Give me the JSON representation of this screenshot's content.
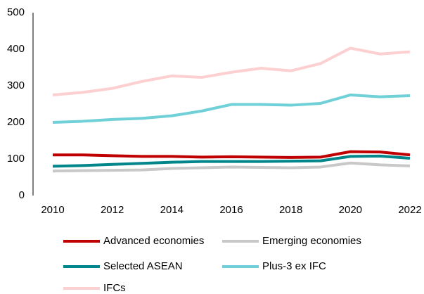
{
  "chart_data": {
    "type": "line",
    "x": [
      2010,
      2011,
      2012,
      2013,
      2014,
      2015,
      2016,
      2017,
      2018,
      2019,
      2020,
      2021,
      2022
    ],
    "xlim": [
      2010,
      2022
    ],
    "xticks": [
      2010,
      2012,
      2014,
      2016,
      2018,
      2020,
      2022
    ],
    "ylim": [
      0,
      500
    ],
    "yticks": [
      0,
      100,
      200,
      300,
      400,
      500
    ],
    "grid": false,
    "legend": "bottom",
    "series": [
      {
        "name": "Advanced economies",
        "color": "#c00000",
        "values": [
          111,
          111,
          109,
          107,
          107,
          105,
          106,
          105,
          104,
          105,
          120,
          119,
          111
        ]
      },
      {
        "name": "Emerging economies",
        "color": "#c8c8c8",
        "values": [
          67,
          68,
          69,
          70,
          74,
          76,
          78,
          77,
          76,
          78,
          89,
          84,
          81
        ]
      },
      {
        "name": "Selected ASEAN",
        "color": "#00868b",
        "values": [
          80,
          82,
          85,
          88,
          91,
          93,
          93,
          93,
          94,
          95,
          107,
          108,
          102
        ]
      },
      {
        "name": "Plus-3 ex IFC",
        "color": "#6fd0d8",
        "values": [
          200,
          203,
          208,
          211,
          218,
          231,
          249,
          249,
          247,
          252,
          275,
          270,
          273
        ]
      },
      {
        "name": "IFCs",
        "color": "#fcd0d0",
        "values": [
          275,
          282,
          293,
          312,
          327,
          323,
          337,
          348,
          341,
          361,
          403,
          387,
          393
        ]
      }
    ]
  }
}
